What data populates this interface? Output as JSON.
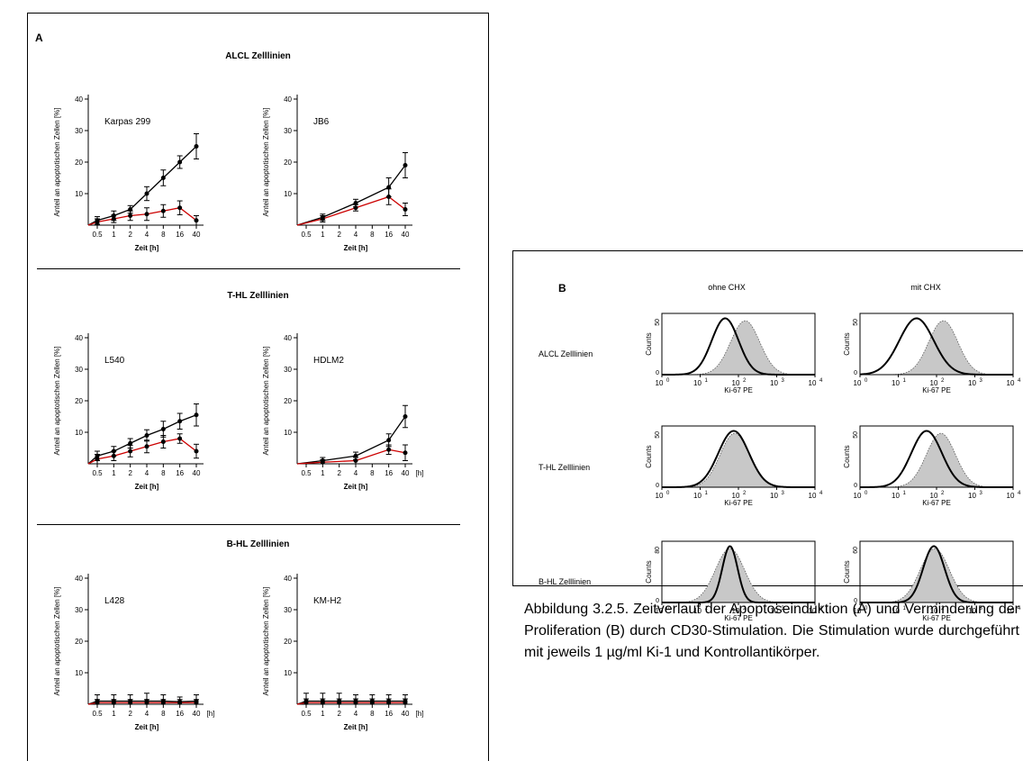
{
  "panel_a": {
    "letter": "A",
    "sections": [
      "ALCL Zelllinien",
      "T-HL Zelllinien",
      "B-HL Zelllinien"
    ]
  },
  "panel_b": {
    "letter": "B",
    "columns": [
      "ohne CHX",
      "mit CHX"
    ],
    "rows": [
      "ALCL Zelllinien",
      "T-HL Zelllinien",
      "B-HL Zelllinien"
    ],
    "histograms": [
      {
        "name": "ALCL ohne CHX",
        "ylabel": "Counts",
        "ytick": "50",
        "xlabel": "Ki-67 PE",
        "control_peak": 150,
        "stim_peak": 45,
        "stim_width": 0.35
      },
      {
        "name": "ALCL mit CHX",
        "ylabel": "Counts",
        "ytick": "50",
        "xlabel": "Ki-67 PE",
        "control_peak": 150,
        "stim_peak": 30,
        "stim_width": 0.45
      },
      {
        "name": "T-HL ohne CHX",
        "ylabel": "Counts",
        "ytick": "50",
        "xlabel": "Ki-67 PE",
        "control_peak": 80,
        "stim_peak": 75,
        "stim_width": 0.4
      },
      {
        "name": "T-HL mit CHX",
        "ylabel": "Counts",
        "ytick": "50",
        "xlabel": "Ki-67 PE",
        "control_peak": 130,
        "stim_peak": 55,
        "stim_width": 0.4
      },
      {
        "name": "B-HL ohne CHX",
        "ylabel": "Counts",
        "ytick": "80",
        "xlabel": "Ki-67 PE",
        "control_peak": 60,
        "stim_peak": 60,
        "stim_width": 0.2
      },
      {
        "name": "B-HL mit CHX",
        "ylabel": "Counts",
        "ytick": "60",
        "xlabel": "Ki-67 PE",
        "control_peak": 90,
        "stim_peak": 85,
        "stim_width": 0.28
      }
    ],
    "xticks": [
      "10",
      "10",
      "10",
      "10",
      "10"
    ],
    "xtick_exps": [
      "0",
      "1",
      "2",
      "3",
      "4"
    ]
  },
  "chart_data": [
    {
      "type": "line",
      "title": "Karpas 299",
      "section": "ALCL Zelllinien",
      "xlabel": "Zeit  [h]",
      "ylabel": "Anteil an apoptotischen Zellen [%]",
      "x": [
        "0.5",
        "1",
        "2",
        "4",
        "8",
        "16",
        "40"
      ],
      "ylim": [
        0,
        40
      ],
      "yticks": [
        "10",
        "20",
        "30",
        "40"
      ],
      "extra_xlabel": "",
      "series": [
        {
          "color": "#000000",
          "values": [
            1.5,
            3,
            5,
            10,
            15,
            20,
            25
          ],
          "errors": [
            1.2,
            1.5,
            1.2,
            2.2,
            2.5,
            2,
            4
          ]
        },
        {
          "color": "#cc0000",
          "values": [
            1,
            2,
            3,
            3.5,
            4.5,
            5.5,
            1.5
          ],
          "errors": [
            1,
            1.2,
            1.5,
            2,
            2,
            2.2,
            1.5
          ]
        }
      ]
    },
    {
      "type": "line",
      "title": "JB6",
      "section": "ALCL Zelllinien",
      "xlabel": "Zeit  [h]",
      "ylabel": "Anteil an apoptotischen Zellen [%]",
      "x": [
        "0.5",
        "1",
        "2",
        "4",
        "8",
        "16",
        "40"
      ],
      "ylim": [
        0,
        40
      ],
      "yticks": [
        "10",
        "20",
        "30",
        "40"
      ],
      "extra_xlabel": "",
      "series": [
        {
          "color": "#000000",
          "values": [
            null,
            2.5,
            null,
            7,
            null,
            12,
            19
          ],
          "errors": [
            null,
            1,
            null,
            1.2,
            null,
            3,
            4
          ]
        },
        {
          "color": "#cc0000",
          "values": [
            null,
            2,
            null,
            5.5,
            null,
            9,
            5
          ],
          "errors": [
            null,
            1,
            null,
            1,
            null,
            2.5,
            2
          ]
        }
      ]
    },
    {
      "type": "line",
      "title": "L540",
      "section": "T-HL Zelllinien",
      "xlabel": "Zeit  [h]",
      "ylabel": "Anteil an apoptotischen Zellen [%]",
      "x": [
        "0.5",
        "1",
        "2",
        "4",
        "8",
        "16",
        "40"
      ],
      "ylim": [
        0,
        40
      ],
      "yticks": [
        "10",
        "20",
        "30",
        "40"
      ],
      "extra_xlabel": "",
      "series": [
        {
          "color": "#000000",
          "values": [
            2.5,
            4,
            6.5,
            9,
            11,
            13.5,
            15.5
          ],
          "errors": [
            1.5,
            1.5,
            1.5,
            1.8,
            2.5,
            2.5,
            3.5
          ]
        },
        {
          "color": "#cc0000",
          "values": [
            1.5,
            2.5,
            4,
            5.5,
            7,
            8,
            4
          ],
          "errors": [
            1.5,
            1.5,
            1.8,
            2,
            2,
            1.5,
            2.2
          ]
        }
      ]
    },
    {
      "type": "line",
      "title": "HDLM2",
      "section": "T-HL Zelllinien",
      "xlabel": "Zeit  [h]",
      "ylabel": "Anteil an apoptotischen Zellen [%]",
      "x": [
        "0.5",
        "1",
        "2",
        "4",
        "8",
        "16",
        "40"
      ],
      "ylim": [
        0,
        40
      ],
      "yticks": [
        "10",
        "20",
        "30",
        "40"
      ],
      "extra_xlabel": "[h]",
      "series": [
        {
          "color": "#000000",
          "values": [
            null,
            1,
            null,
            2.5,
            null,
            7.5,
            15
          ],
          "errors": [
            null,
            1,
            null,
            1.2,
            null,
            2,
            3.5
          ]
        },
        {
          "color": "#cc0000",
          "values": [
            null,
            0.5,
            null,
            1,
            null,
            4.5,
            3.5
          ],
          "errors": [
            null,
            0.8,
            null,
            1,
            null,
            1.5,
            2.5
          ]
        }
      ]
    },
    {
      "type": "line",
      "title": "L428",
      "section": "B-HL Zelllinien",
      "xlabel": "Zeit  [h]",
      "ylabel": "Anteil an apoptotischen Zellen [%]",
      "x": [
        "0.5",
        "1",
        "2",
        "4",
        "8",
        "16",
        "40"
      ],
      "ylim": [
        0,
        40
      ],
      "yticks": [
        "10",
        "20",
        "30",
        "40"
      ],
      "extra_xlabel": "[h]",
      "series": [
        {
          "color": "#000000",
          "values": [
            1,
            1,
            1,
            1,
            1,
            0.8,
            1
          ],
          "errors": [
            2,
            2,
            2,
            2.5,
            2,
            1.5,
            2
          ]
        },
        {
          "color": "#cc0000",
          "values": [
            0.5,
            0.5,
            0.5,
            0.5,
            0.5,
            0.5,
            0.5
          ],
          "errors": [
            1,
            1,
            1,
            1,
            1,
            1,
            1
          ]
        }
      ]
    },
    {
      "type": "line",
      "title": "KM-H2",
      "section": "B-HL Zelllinien",
      "xlabel": "Zeit  [h]",
      "ylabel": "Anteil an apoptotischen Zellen [%]",
      "x": [
        "0.5",
        "1",
        "2",
        "4",
        "8",
        "16",
        "40"
      ],
      "ylim": [
        0,
        40
      ],
      "yticks": [
        "10",
        "20",
        "30",
        "40"
      ],
      "extra_xlabel": "[h]",
      "series": [
        {
          "color": "#000000",
          "values": [
            1,
            1,
            1,
            1,
            1,
            1,
            1
          ],
          "errors": [
            2.5,
            2.5,
            2.5,
            2,
            2,
            2,
            2
          ]
        },
        {
          "color": "#cc0000",
          "values": [
            0.5,
            0.5,
            0.5,
            0.5,
            0.5,
            0.5,
            0.5
          ],
          "errors": [
            1.2,
            1.2,
            1.2,
            1.2,
            1.2,
            1.2,
            1.2
          ]
        }
      ]
    }
  ],
  "caption": "Abbildung 3.2.5. Zeitverlauf der Apoptoseinduktion (A) und Verminderung der Proliferation (B) durch CD30-Stimulation. Die Stimulation wurde durchgeführt mit jeweils 1 µg/ml Ki-1 und Kontrollantikörper."
}
